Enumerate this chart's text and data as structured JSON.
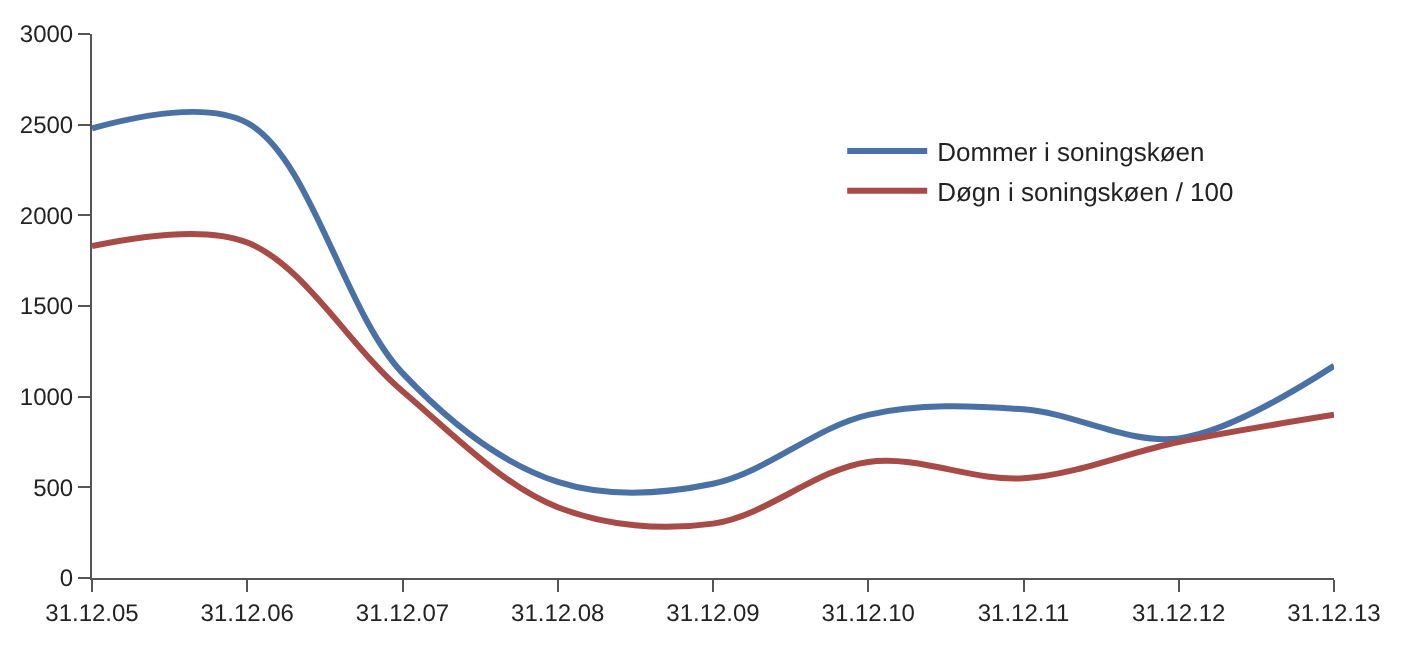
{
  "chart_data": {
    "type": "line",
    "categories": [
      "31.12.05",
      "31.12.06",
      "31.12.07",
      "31.12.08",
      "31.12.09",
      "31.12.10",
      "31.12.11",
      "31.12.12",
      "31.12.13"
    ],
    "series": [
      {
        "name": "Dommer i soningskøen",
        "color": "#4a71a5",
        "values": [
          2480,
          2510,
          1130,
          530,
          520,
          900,
          930,
          770,
          1170
        ]
      },
      {
        "name": "Døgn i soningskøen / 100",
        "color": "#a84a45",
        "values": [
          1830,
          1850,
          1030,
          390,
          300,
          640,
          550,
          750,
          900
        ]
      }
    ],
    "ylim": [
      0,
      3000
    ],
    "yticks": [
      0,
      500,
      1000,
      1500,
      2000,
      2500,
      3000
    ],
    "legend": "top right",
    "marker": "none",
    "line_style": "solid"
  }
}
